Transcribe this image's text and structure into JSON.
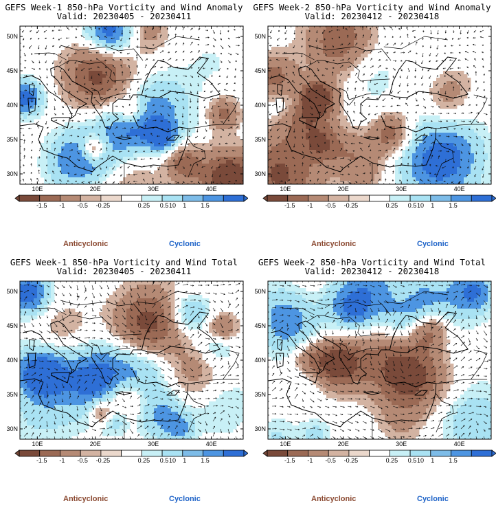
{
  "panels": [
    {
      "id": "p1",
      "title": "GEFS Week-1 850-hPa Vorticity and Wind Anomaly",
      "subtitle": "Valid: 20230405 - 20230411",
      "seed": 3
    },
    {
      "id": "p2",
      "title": "GEFS Week-2 850-hPa Vorticity and Wind Anomaly",
      "subtitle": "Valid: 20230412 - 20230418",
      "seed": 7
    },
    {
      "id": "p3",
      "title": "GEFS Week-1 850-hPa Vorticity and Wind Total",
      "subtitle": "Valid: 20230405 - 20230411",
      "seed": 11
    },
    {
      "id": "p4",
      "title": "GEFS Week-2 850-hPa Vorticity and Wind Total",
      "subtitle": "Valid: 20230412 - 20230418",
      "seed": 17
    }
  ],
  "lat_labels": [
    "50N",
    "45N",
    "40N",
    "35N",
    "30N"
  ],
  "lon_labels": [
    "10E",
    "20E",
    "30E",
    "40E"
  ],
  "colorbar": {
    "tick_labels": [
      "-1.5",
      "-1",
      "-0.5",
      "-0.25",
      "0.25",
      "0.5",
      "1",
      "1.5"
    ],
    "scale_label": "10",
    "colors": [
      "#7a4a3a",
      "#9b6a55",
      "#b58a75",
      "#d3b3a2",
      "#ebd8cc",
      "#ffffff",
      "#c8f0f6",
      "#a9e2f3",
      "#7dbce8",
      "#4d95e2",
      "#2e6fd6"
    ]
  },
  "legend": {
    "anticyclonic": "Anticyclonic",
    "cyclonic": "Cyclonic"
  }
}
